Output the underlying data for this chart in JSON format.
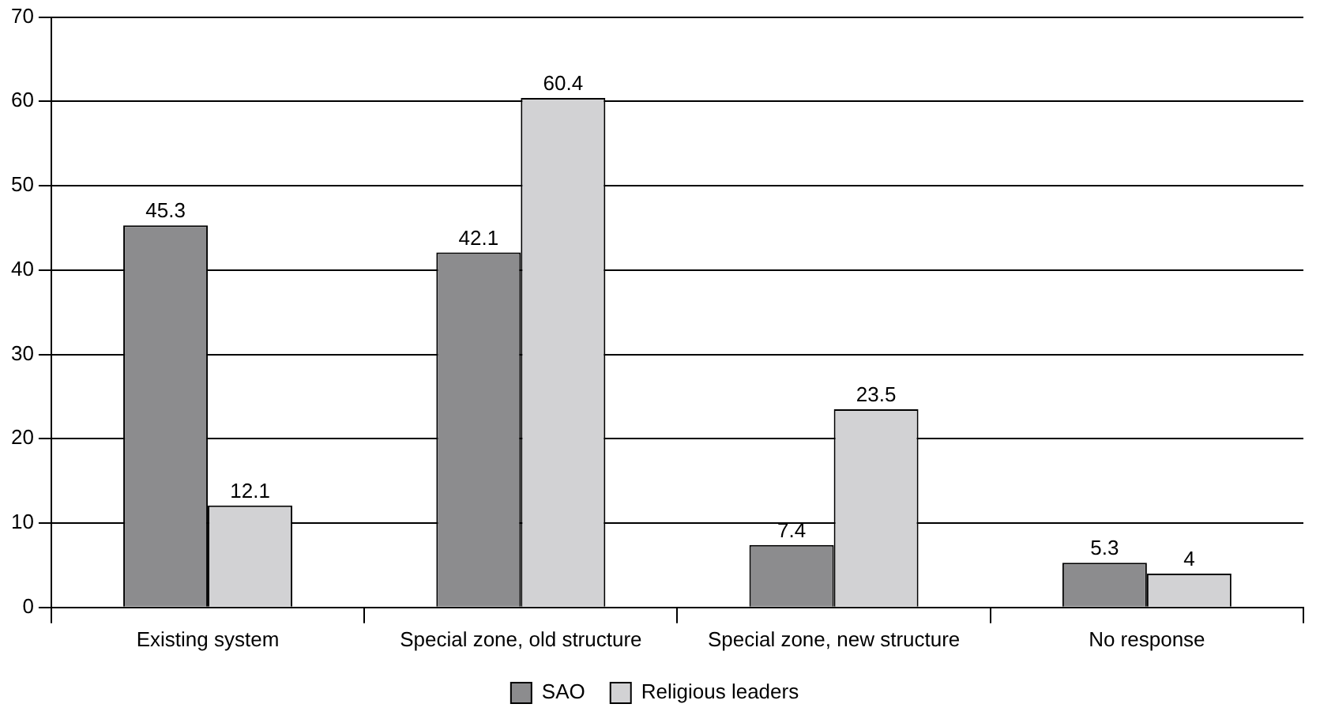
{
  "chart_data": {
    "type": "bar",
    "categories": [
      "Existing system",
      "Special zone, old structure",
      "Special zone, new structure",
      "No response"
    ],
    "series": [
      {
        "name": "SAO",
        "color": "#8c8c8e",
        "values": [
          45.3,
          42.1,
          7.4,
          5.3
        ]
      },
      {
        "name": "Religious leaders",
        "color": "#d2d2d4",
        "values": [
          12.1,
          60.4,
          23.5,
          4
        ]
      }
    ],
    "ylim": [
      0,
      70
    ],
    "yticks": [
      0,
      10,
      20,
      30,
      40,
      50,
      60,
      70
    ],
    "grid": "y",
    "legend": "bottom",
    "data_labels": true
  }
}
